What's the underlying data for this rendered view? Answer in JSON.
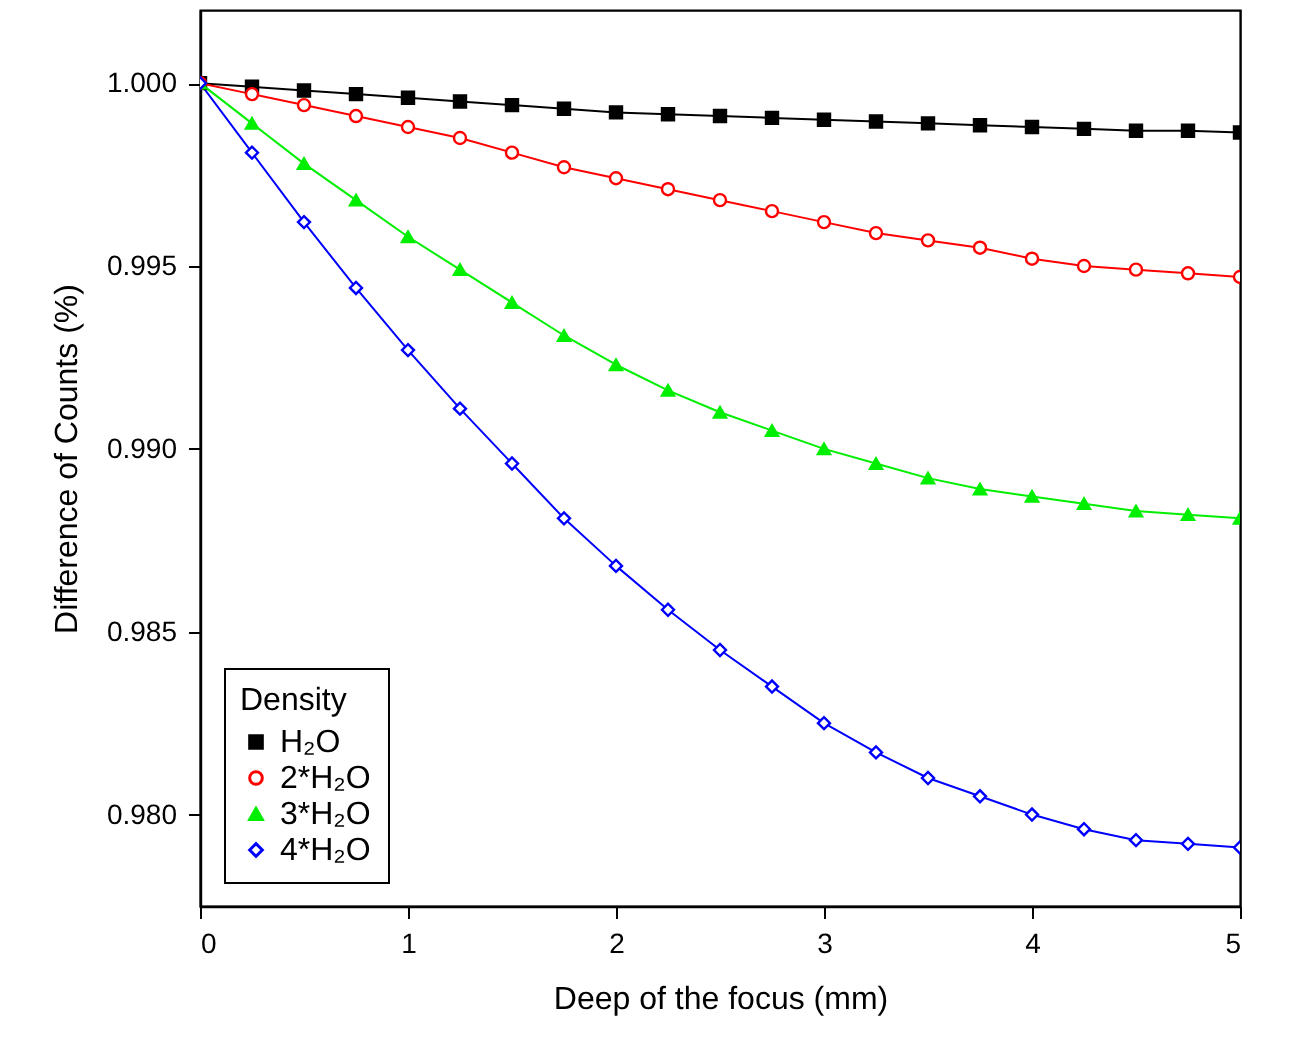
{
  "chart_data": {
    "type": "line",
    "xlabel": "Deep of the focus (mm)",
    "ylabel": "Difference of Counts (%)",
    "legend_title": "Density",
    "legend": "bottom left",
    "grid": false,
    "x": [
      0,
      0.25,
      0.5,
      0.75,
      1,
      1.25,
      1.5,
      1.75,
      2,
      2.25,
      2.5,
      2.75,
      3,
      3.25,
      3.5,
      3.75,
      4,
      4.25,
      4.5,
      4.75,
      5
    ],
    "xlim": [
      0,
      5
    ],
    "xticks": [
      0,
      1,
      2,
      3,
      4,
      5
    ],
    "ylim": [
      0.9775,
      1.002
    ],
    "yticks": [
      {
        "value": 0.98,
        "label": "0.980"
      },
      0.985,
      {
        "value": 0.99,
        "label": "0.990"
      },
      0.995,
      {
        "value": 1,
        "label": "1.000"
      }
    ],
    "series": [
      {
        "name": "H₂O",
        "color": "#000000",
        "marker": "square",
        "values": [
          1.0,
          0.9999,
          0.9998,
          0.9997,
          0.9996,
          0.9995,
          0.9994,
          0.9993,
          0.9992,
          0.99915,
          0.9991,
          0.99905,
          0.999,
          0.99895,
          0.9989,
          0.99885,
          0.9988,
          0.99875,
          0.9987,
          0.9987,
          0.99865
        ]
      },
      {
        "name": "2*H₂O",
        "color": "#ff0000",
        "marker": "circle",
        "values": [
          1.0,
          0.9997,
          0.9994,
          0.9991,
          0.9988,
          0.9985,
          0.9981,
          0.9977,
          0.9974,
          0.9971,
          0.9968,
          0.9965,
          0.9962,
          0.9959,
          0.9957,
          0.9955,
          0.9952,
          0.995,
          0.9949,
          0.9948,
          0.9947
        ]
      },
      {
        "name": "3*H₂O",
        "color": "#00ee00",
        "marker": "triangle",
        "values": [
          1.0,
          0.9989,
          0.9978,
          0.9968,
          0.9958,
          0.9949,
          0.994,
          0.9931,
          0.9923,
          0.9916,
          0.991,
          0.9905,
          0.99,
          0.9896,
          0.9892,
          0.9889,
          0.9887,
          0.9885,
          0.9883,
          0.9882,
          0.9881
        ]
      },
      {
        "name": "4*H₂O",
        "color": "#0000ff",
        "marker": "diamond",
        "values": [
          1.0,
          0.9981,
          0.9962,
          0.9944,
          0.9927,
          0.9911,
          0.9896,
          0.9881,
          0.9868,
          0.9856,
          0.9845,
          0.9835,
          0.9825,
          0.9817,
          0.981,
          0.9805,
          0.98,
          0.9796,
          0.9793,
          0.9792,
          0.9791
        ]
      }
    ]
  }
}
